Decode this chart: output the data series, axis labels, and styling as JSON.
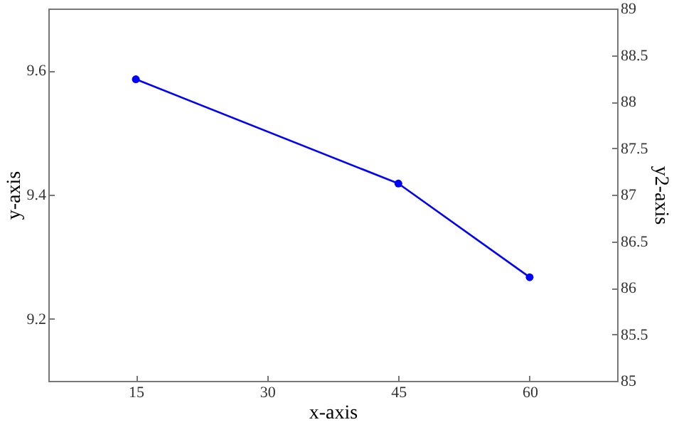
{
  "chart_data": {
    "type": "line",
    "xlabel": "x-axis",
    "ylabel": "y-axis",
    "y2label": "y2-axis",
    "x": [
      15,
      45,
      60
    ],
    "series": [
      {
        "color": "#0000ff",
        "values": [
          9.586,
          9.418,
          9.267
        ]
      }
    ],
    "xlim": [
      5,
      70
    ],
    "xticks": [
      15,
      30,
      45,
      60
    ],
    "ylim": [
      9.1,
      9.7
    ],
    "yticks": [
      9.2,
      9.4,
      9.6
    ],
    "y2lim": [
      85,
      89
    ],
    "y2ticks": [
      85,
      85.5,
      86,
      86.5,
      87,
      87.5,
      88,
      88.5,
      89
    ],
    "marker": "circle",
    "line_style": "solid",
    "grid": false
  }
}
